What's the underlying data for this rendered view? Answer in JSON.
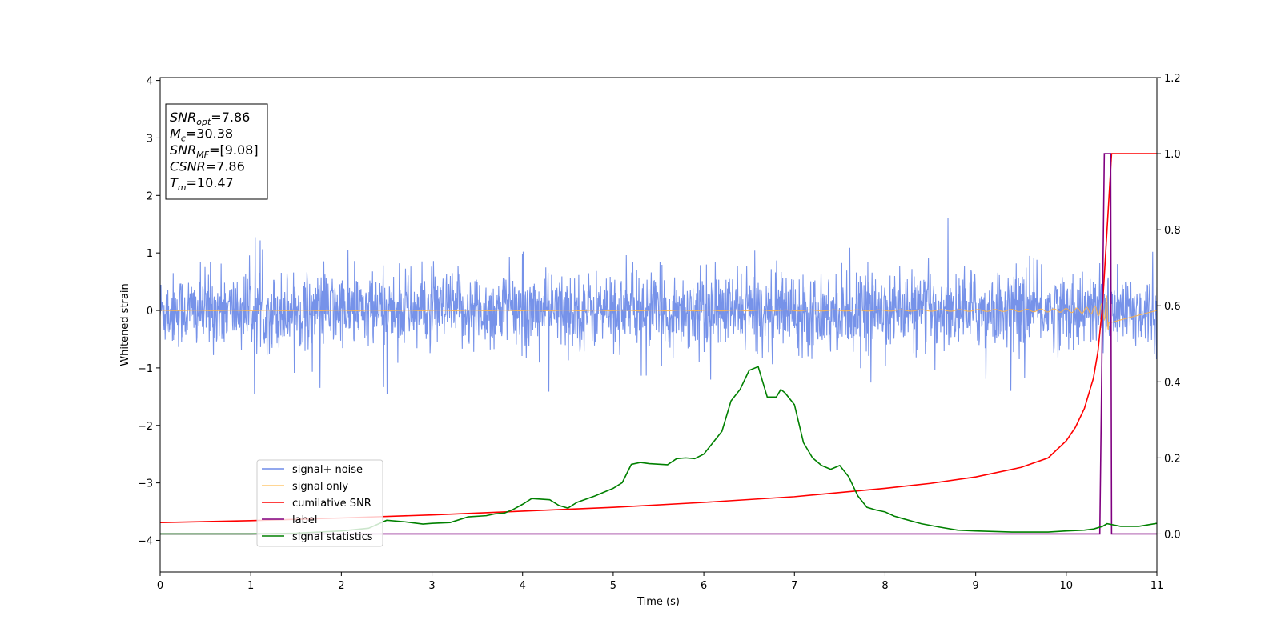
{
  "chart_data": {
    "type": "line",
    "xlabel": "Time (s)",
    "ylabel": "Whitened strain",
    "xlim": [
      0,
      11
    ],
    "ylim_left": [
      -4.55,
      4.05
    ],
    "ylim_right": [
      -0.1,
      1.2
    ],
    "xticks": [
      "0",
      "1",
      "2",
      "3",
      "4",
      "5",
      "6",
      "7",
      "8",
      "9",
      "10",
      "11"
    ],
    "yticks_left": [
      "4",
      "3",
      "2",
      "1",
      "0",
      "−1",
      "−2",
      "−3",
      "−4"
    ],
    "yticks_right": [
      "1.2",
      "1.0",
      "0.8",
      "0.6",
      "0.4",
      "0.2",
      "0.0"
    ],
    "info_box": [
      {
        "main": "SNR",
        "sub": "opt",
        "value": "=7.86"
      },
      {
        "main": "M",
        "sub": "c",
        "value": "=30.38"
      },
      {
        "main": "SNR",
        "sub": "MF",
        "value": "=[9.08]"
      },
      {
        "main": "CSNR",
        "sub": "",
        "value": "=7.86"
      },
      {
        "main": "T",
        "sub": "m",
        "value": "=10.47"
      }
    ],
    "legend": [
      {
        "label": "signal+ noise",
        "color": "#6f8ce8"
      },
      {
        "label": "signal only",
        "color": "#ffc870"
      },
      {
        "label": "cumilative SNR",
        "color": "#ff0000"
      },
      {
        "label": "label",
        "color": "#800080"
      },
      {
        "label": "signal statistics",
        "color": "#008000"
      }
    ],
    "series": [
      {
        "name": "signal+ noise",
        "axis": "left",
        "color": "#6f8ce8",
        "style": "noise",
        "amplitude_typical": 0.75,
        "peak_max": 1.6,
        "peak_min": -1.45
      },
      {
        "name": "signal only",
        "axis": "left",
        "color": "#ffb347",
        "style": "chirp",
        "merger_time": 10.47,
        "start_time": 7.5
      },
      {
        "name": "cumilative SNR",
        "axis": "right",
        "color": "#ff0000",
        "x": [
          0,
          1,
          2,
          3,
          4,
          5,
          6,
          7,
          8,
          8.5,
          9,
          9.5,
          9.8,
          10,
          10.1,
          10.2,
          10.3,
          10.35,
          10.4,
          10.45,
          10.5,
          11
        ],
        "y": [
          0.03,
          0.035,
          0.042,
          0.05,
          0.06,
          0.07,
          0.083,
          0.098,
          0.12,
          0.133,
          0.15,
          0.175,
          0.2,
          0.245,
          0.28,
          0.33,
          0.41,
          0.48,
          0.6,
          0.8,
          1.0,
          1.0
        ]
      },
      {
        "name": "label",
        "axis": "right",
        "color": "#800080",
        "x": [
          0,
          10.37,
          10.42,
          10.49,
          10.5,
          11
        ],
        "y": [
          0,
          0,
          1.0,
          1.0,
          0,
          0
        ]
      },
      {
        "name": "signal statistics",
        "axis": "right",
        "color": "#008000",
        "x": [
          0,
          0.5,
          1,
          1.5,
          2,
          2.3,
          2.5,
          2.7,
          2.9,
          3.0,
          3.2,
          3.4,
          3.6,
          3.7,
          3.8,
          3.9,
          4.0,
          4.1,
          4.3,
          4.4,
          4.5,
          4.6,
          4.8,
          4.9,
          5.0,
          5.1,
          5.2,
          5.3,
          5.4,
          5.6,
          5.7,
          5.8,
          5.9,
          6.0,
          6.1,
          6.2,
          6.3,
          6.4,
          6.5,
          6.6,
          6.7,
          6.8,
          6.85,
          6.9,
          7.0,
          7.1,
          7.2,
          7.3,
          7.4,
          7.5,
          7.6,
          7.7,
          7.8,
          7.9,
          8.0,
          8.1,
          8.2,
          8.4,
          8.6,
          8.8,
          9.0,
          9.4,
          9.8,
          10.0,
          10.2,
          10.3,
          10.4,
          10.45,
          10.6,
          10.8,
          11.0
        ],
        "y": [
          0.0,
          0.0,
          0.0,
          0.002,
          0.008,
          0.015,
          0.036,
          0.032,
          0.026,
          0.028,
          0.03,
          0.045,
          0.048,
          0.053,
          0.055,
          0.065,
          0.078,
          0.093,
          0.09,
          0.075,
          0.068,
          0.083,
          0.1,
          0.11,
          0.12,
          0.135,
          0.183,
          0.188,
          0.185,
          0.182,
          0.198,
          0.2,
          0.198,
          0.21,
          0.24,
          0.27,
          0.35,
          0.38,
          0.43,
          0.44,
          0.36,
          0.36,
          0.38,
          0.37,
          0.34,
          0.24,
          0.2,
          0.18,
          0.17,
          0.18,
          0.15,
          0.1,
          0.07,
          0.063,
          0.058,
          0.047,
          0.04,
          0.027,
          0.018,
          0.01,
          0.008,
          0.005,
          0.005,
          0.008,
          0.01,
          0.013,
          0.02,
          0.027,
          0.02,
          0.02,
          0.028
        ]
      }
    ]
  }
}
